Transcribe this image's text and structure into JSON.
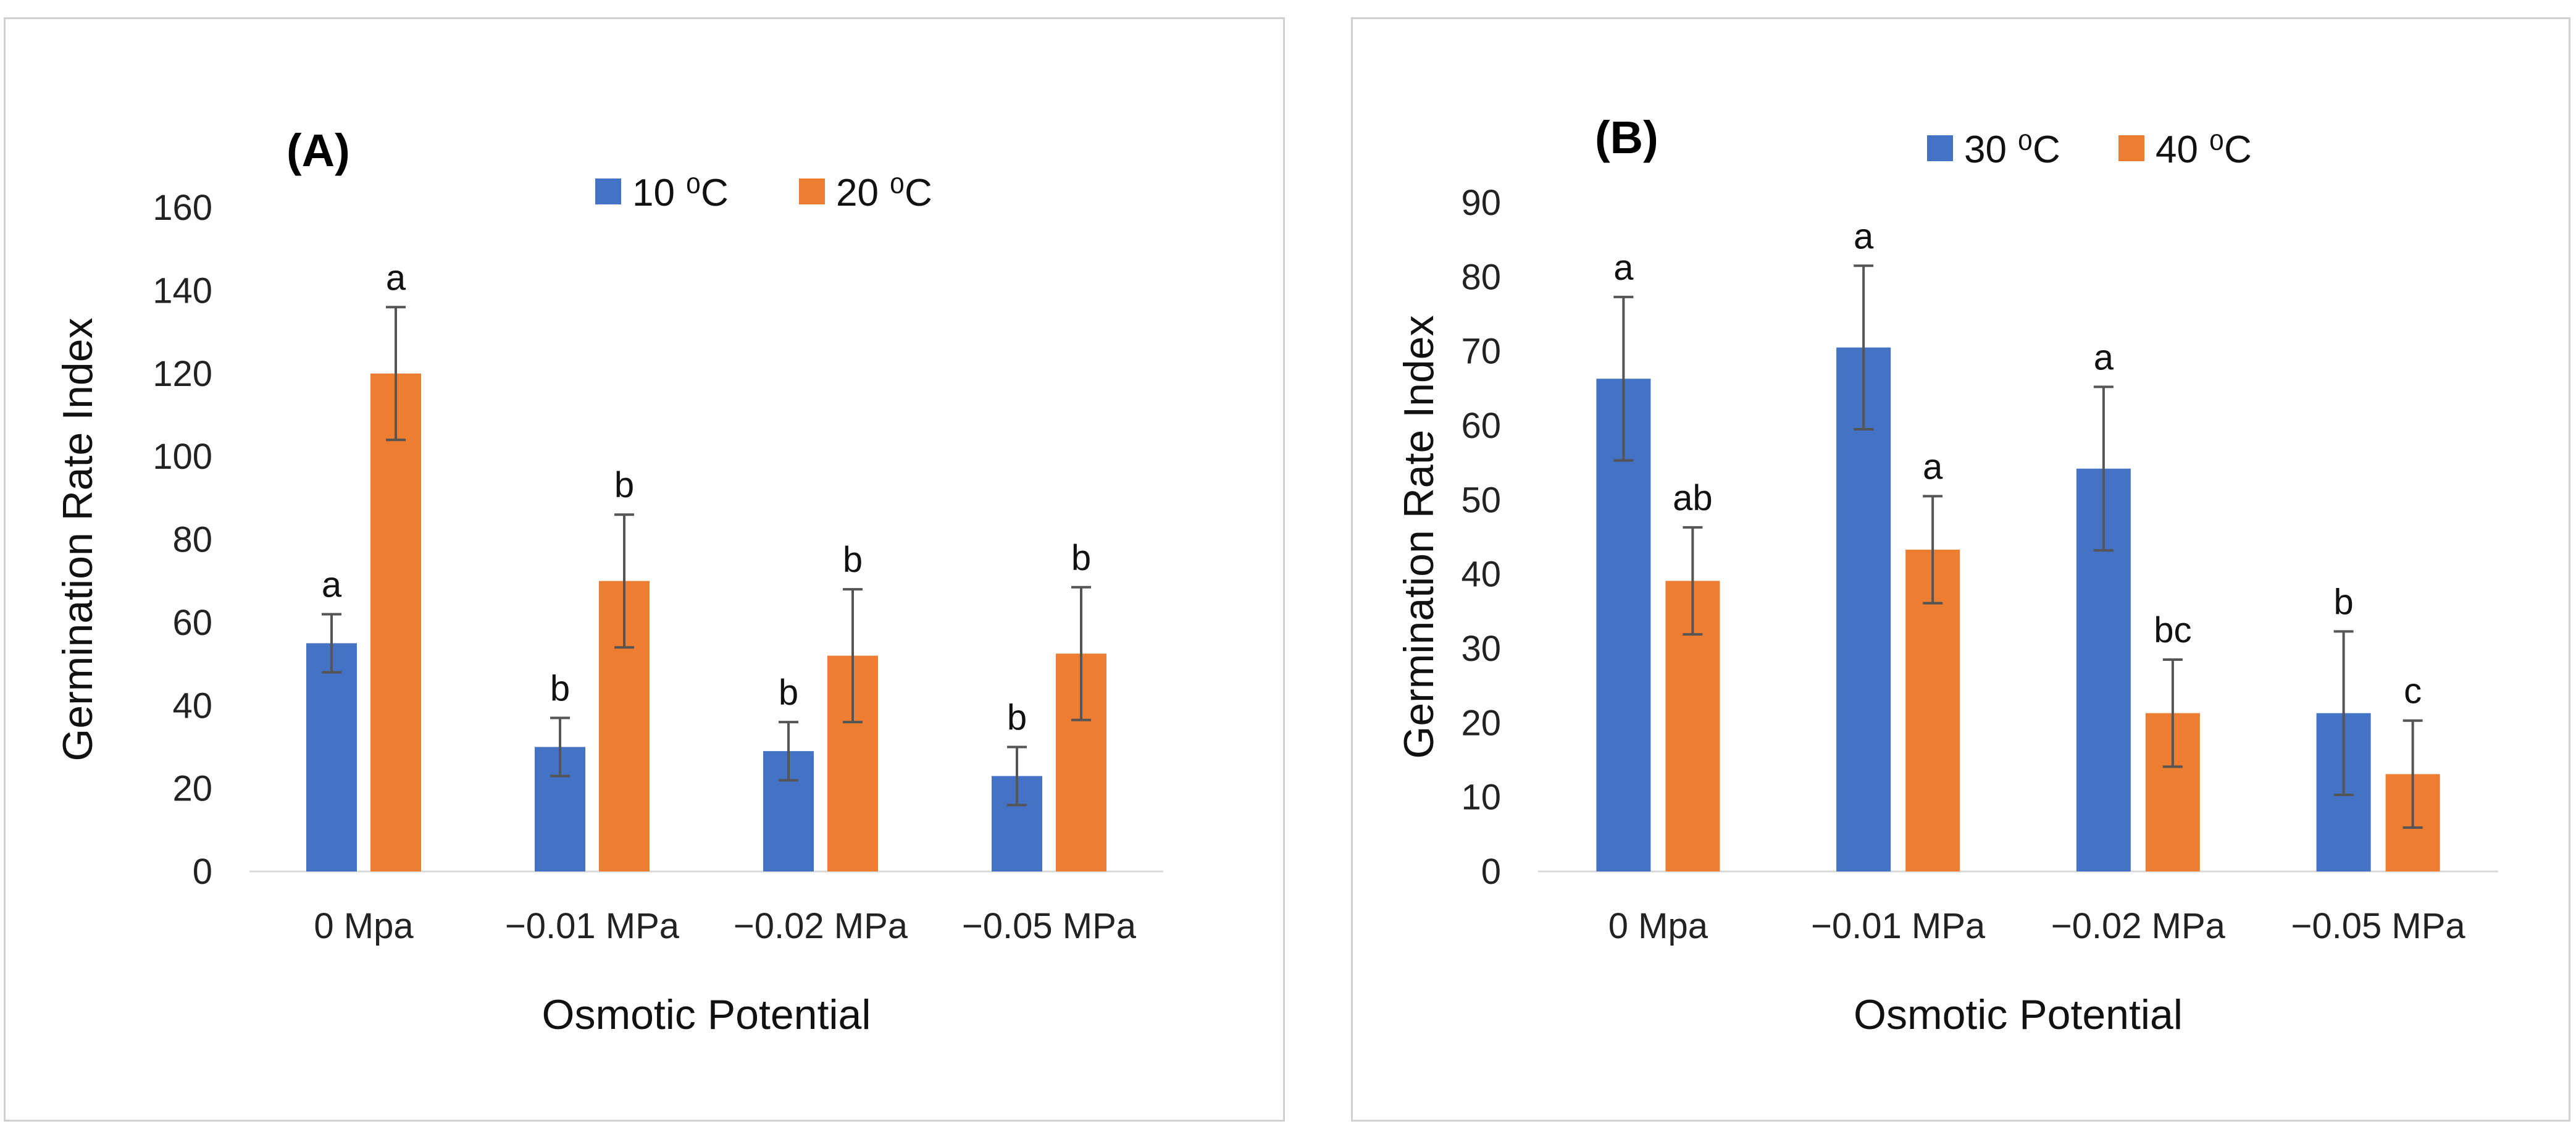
{
  "chart_data": [
    {
      "type": "bar",
      "panel_label": "(A)",
      "categories": [
        "0 Mpa",
        "−0.01 MPa",
        "−0.02 MPa",
        "−0.05 MPa"
      ],
      "series": [
        {
          "name": "10 ⁰C",
          "values": [
            55,
            30,
            29,
            23
          ],
          "errors": [
            7,
            7,
            7,
            7
          ],
          "letters": [
            "a",
            "b",
            "b",
            "b"
          ],
          "color": "#4472C4"
        },
        {
          "name": "20 ⁰C",
          "values": [
            120,
            70,
            52,
            52.5
          ],
          "errors": [
            16,
            16,
            16,
            16
          ],
          "letters": [
            "a",
            "b",
            "b",
            "b"
          ],
          "color": "#ED7D31"
        }
      ],
      "xlabel": "Osmotic Potential",
      "ylabel": "Germination Rate Index",
      "ylim": [
        0,
        160
      ],
      "yticks": [
        0,
        20,
        40,
        60,
        80,
        100,
        120,
        140,
        160
      ],
      "grid": false,
      "legend": "top-center"
    },
    {
      "type": "bar",
      "panel_label": "(B)",
      "categories": [
        "0 Mpa",
        "−0.01 MPa",
        "−0.02 MPa",
        "−0.05 MPa"
      ],
      "series": [
        {
          "name": "30 ⁰C",
          "values": [
            66.3,
            70.5,
            54.2,
            21.3
          ],
          "errors": [
            11,
            11,
            11,
            11
          ],
          "letters": [
            "a",
            "a",
            "a",
            "b"
          ],
          "color": "#4472C4"
        },
        {
          "name": "40 ⁰C",
          "values": [
            39.1,
            43.3,
            21.3,
            13.1
          ],
          "errors": [
            7.2,
            7.2,
            7.2,
            7.2
          ],
          "letters": [
            "ab",
            "a",
            "bc",
            "c"
          ],
          "color": "#ED7D31"
        }
      ],
      "xlabel": "Osmotic Potential",
      "ylabel": "Germination Rate Index",
      "ylim": [
        0,
        90
      ],
      "yticks": [
        0,
        10,
        20,
        30,
        40,
        50,
        60,
        70,
        80,
        90
      ],
      "grid": false,
      "legend": "top-center"
    }
  ]
}
